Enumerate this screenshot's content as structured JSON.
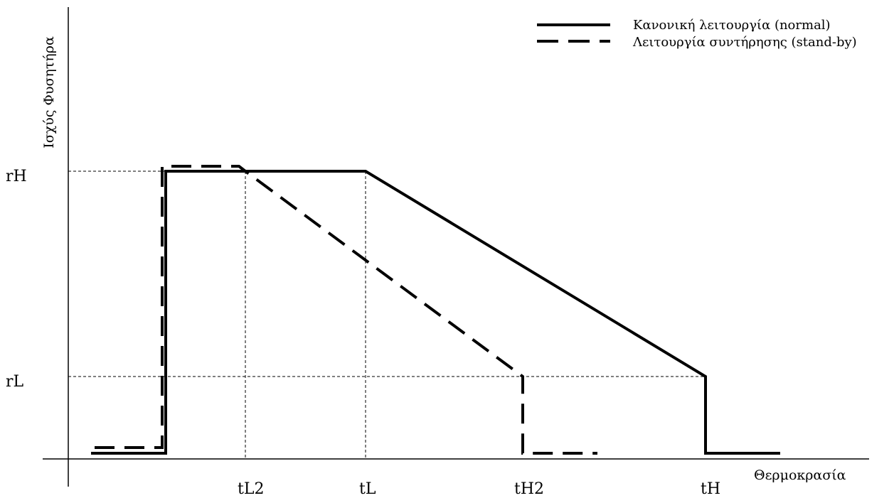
{
  "diagram": {
    "y_axis_title": "Ισχύς Φυσητήρα",
    "x_axis_title": "Θερμοκρασία",
    "y_ticks": {
      "rH": "rH",
      "rL": "rL"
    },
    "x_ticks": {
      "tL2": "tL2",
      "tL": "tL",
      "tH2": "tH2",
      "tH": "tH"
    },
    "legend": {
      "normal": "Κανονική λειτουργία (normal)",
      "standby": "Λειτουργία συντήρησης (stand-by)"
    },
    "line_color": "#000000"
  }
}
